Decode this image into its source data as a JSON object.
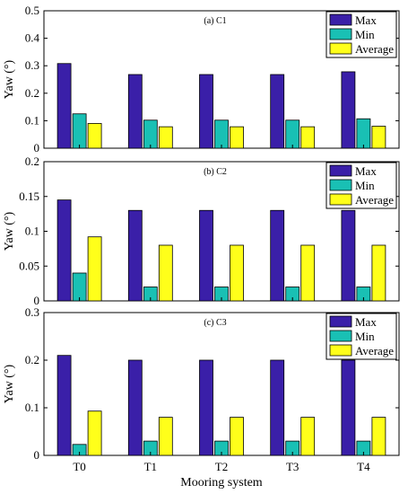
{
  "chart_data": [
    {
      "type": "bar",
      "title": "(a) C1",
      "xlabel": "",
      "ylabel": "Yaw (°)",
      "categories": [
        "T0",
        "T1",
        "T2",
        "T3",
        "T4"
      ],
      "ylim": [
        0,
        0.5
      ],
      "yticks": [
        "0",
        "0.1",
        "0.2",
        "0.3",
        "0.4",
        "0.5"
      ],
      "legend_position": "top-right",
      "series": [
        {
          "name": "Max",
          "color": "#3a1fa8",
          "values": [
            0.308,
            0.268,
            0.268,
            0.268,
            0.278
          ]
        },
        {
          "name": "Min",
          "color": "#19c0b4",
          "values": [
            0.125,
            0.102,
            0.102,
            0.102,
            0.107
          ]
        },
        {
          "name": "Average",
          "color": "#ffff1a",
          "values": [
            0.09,
            0.078,
            0.078,
            0.078,
            0.08
          ]
        }
      ]
    },
    {
      "type": "bar",
      "title": "(b) C2",
      "xlabel": "",
      "ylabel": "Yaw (°)",
      "categories": [
        "T0",
        "T1",
        "T2",
        "T3",
        "T4"
      ],
      "ylim": [
        0,
        0.2
      ],
      "yticks": [
        "0",
        "0.05",
        "0.1",
        "0.15",
        "0.2"
      ],
      "legend_position": "top-right",
      "series": [
        {
          "name": "Max",
          "color": "#3a1fa8",
          "values": [
            0.145,
            0.13,
            0.13,
            0.13,
            0.13
          ]
        },
        {
          "name": "Min",
          "color": "#19c0b4",
          "values": [
            0.04,
            0.02,
            0.02,
            0.02,
            0.02
          ]
        },
        {
          "name": "Average",
          "color": "#ffff1a",
          "values": [
            0.092,
            0.08,
            0.08,
            0.08,
            0.08
          ]
        }
      ]
    },
    {
      "type": "bar",
      "title": "(c) C3",
      "xlabel": "Mooring system",
      "ylabel": "Yaw (°)",
      "categories": [
        "T0",
        "T1",
        "T2",
        "T3",
        "T4"
      ],
      "ylim": [
        0,
        0.3
      ],
      "yticks": [
        "0",
        "0.1",
        "0.2",
        "0.3"
      ],
      "legend_position": "top-right",
      "series": [
        {
          "name": "Max",
          "color": "#3a1fa8",
          "values": [
            0.21,
            0.2,
            0.2,
            0.2,
            0.2
          ]
        },
        {
          "name": "Min",
          "color": "#19c0b4",
          "values": [
            0.023,
            0.03,
            0.03,
            0.03,
            0.03
          ]
        },
        {
          "name": "Average",
          "color": "#ffff1a",
          "values": [
            0.093,
            0.08,
            0.08,
            0.08,
            0.08
          ]
        }
      ]
    }
  ]
}
